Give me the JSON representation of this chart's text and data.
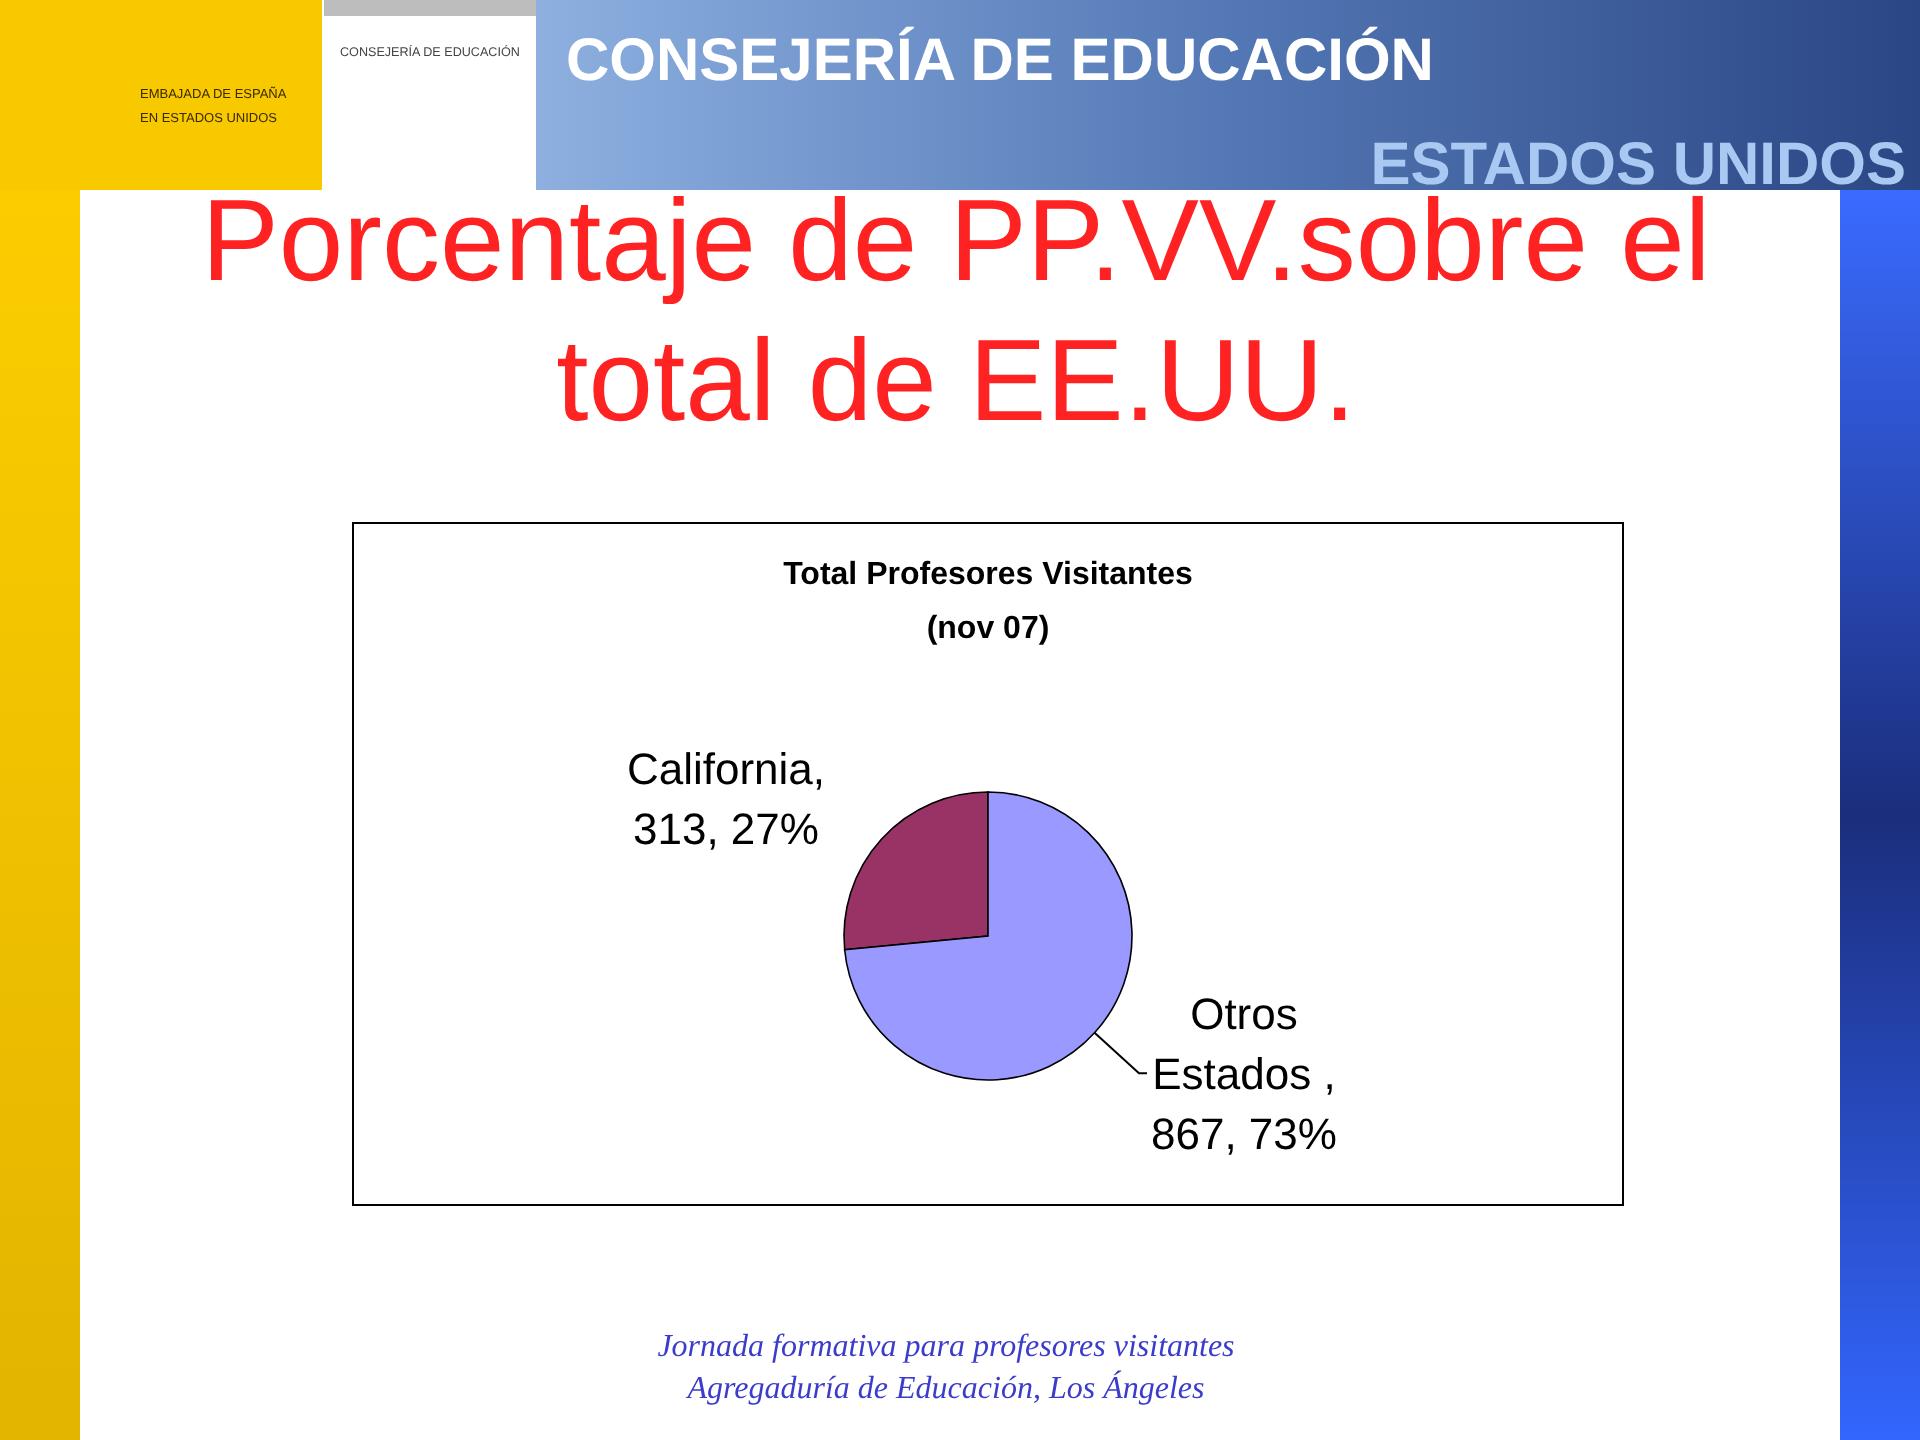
{
  "chart_data": {
    "type": "pie",
    "title": "Total Profesores Visitantes",
    "subtitle": "(nov 07)",
    "categories": [
      "California",
      "Otros Estados "
    ],
    "values": [
      313,
      867
    ],
    "colors": [
      "#993366",
      "#9999ff"
    ],
    "value_labels": [
      ", 313, 27%",
      ", 867, 73%"
    ],
    "annotations": [
      "Porcentaje de PP.VV.sobre el total de EE.UU.",
      "Jornada formativa para profesores visitantes",
      "Agregaduría de Educación, Los Ángeles",
      "CONSEJERÍA DE EDUCACIÓN",
      "CONSEJERÍA DE EDUCACIÓN",
      "EMBAJADA DE ESPAÑA EN ESTADOS UNIDOS",
      "ESTADOS UNIDOS"
    ]
  }
}
